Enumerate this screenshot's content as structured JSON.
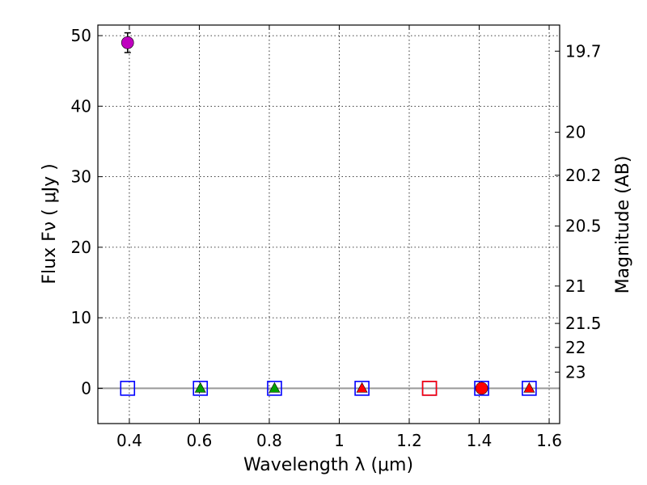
{
  "chart_data": {
    "type": "scatter",
    "title": "",
    "xlabel": "Wavelength  λ (μm)",
    "ylabel": "Flux  Fν  ( μJy )",
    "y2label": "Magnitude (AB)",
    "xlim": [
      0.31,
      1.63
    ],
    "ylim": [
      -5,
      51.5
    ],
    "grid": true,
    "x_ticks": [
      0.4,
      0.6,
      0.8,
      1.0,
      1.2,
      1.4,
      1.6
    ],
    "x_tick_labels": [
      "0.4",
      "0.6",
      "0.8",
      "1",
      "1.2",
      "1.4",
      "1.6"
    ],
    "y_ticks": [
      0,
      10,
      20,
      30,
      40,
      50
    ],
    "y_tick_labels": [
      "0",
      "10",
      "20",
      "30",
      "40",
      "50"
    ],
    "y2_ticks": [
      {
        "flux": 47.8,
        "label": "19.7"
      },
      {
        "flux": 36.3,
        "label": "20"
      },
      {
        "flux": 30.2,
        "label": "20.2"
      },
      {
        "flux": 23.0,
        "label": "20.5"
      },
      {
        "flux": 14.5,
        "label": "21"
      },
      {
        "flux": 9.2,
        "label": "21.5"
      },
      {
        "flux": 5.8,
        "label": "22"
      },
      {
        "flux": 2.3,
        "label": "23"
      }
    ],
    "zero_line_color": "#999999",
    "series": [
      {
        "name": "detection",
        "marker": "circle",
        "color": "#bf00bf",
        "x": [
          0.395
        ],
        "y": [
          49.0
        ],
        "yerr": [
          1.4
        ]
      },
      {
        "name": "upper limits",
        "marker": "square-open",
        "color": "#0000ff",
        "x": [
          0.395,
          0.603,
          0.815,
          1.065,
          1.258,
          1.407,
          1.543
        ],
        "y": [
          0,
          0,
          0,
          0,
          0,
          0,
          0
        ]
      },
      {
        "name": "green triangles",
        "marker": "triangle",
        "color": "#00a000",
        "x": [
          0.603,
          0.815
        ],
        "y": [
          0,
          0
        ]
      },
      {
        "name": "red triangles",
        "marker": "triangle",
        "color": "#ff0000",
        "x": [
          1.065,
          1.543
        ],
        "y": [
          0,
          0
        ]
      },
      {
        "name": "red open square",
        "marker": "square-open",
        "color": "#ff0000",
        "x": [
          1.258
        ],
        "y": [
          0
        ]
      },
      {
        "name": "red circle",
        "marker": "circle",
        "color": "#ff0000",
        "x": [
          1.407
        ],
        "y": [
          0
        ]
      }
    ]
  }
}
